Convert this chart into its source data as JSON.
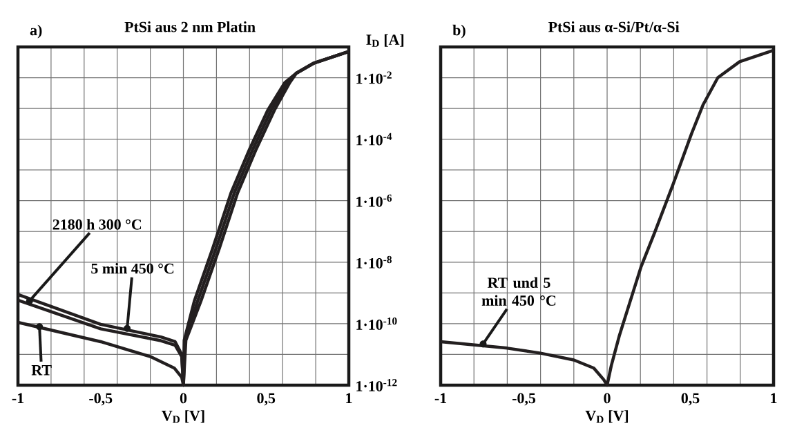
{
  "chart_data": [
    {
      "type": "line",
      "title": "PtSi aus 2 nm Platin",
      "xlabel": "V$_{D}$ [V]",
      "ylabel": "I$_{D}$ [A]",
      "log": "y",
      "grid": true,
      "line_style": "solid",
      "marker": "none",
      "xlim": [
        -1,
        1
      ],
      "ylim": [
        1e-12,
        0.1
      ],
      "xticks": [
        {
          "value": -1,
          "label": "-1"
        },
        {
          "value": -0.8,
          "label": null
        },
        {
          "value": -0.6,
          "label": null
        },
        {
          "value": -0.5,
          "label": "-0,5"
        },
        {
          "value": -0.4,
          "label": null
        },
        {
          "value": -0.2,
          "label": null
        },
        {
          "value": 0,
          "label": "0"
        },
        {
          "value": 0.2,
          "label": null
        },
        {
          "value": 0.4,
          "label": null
        },
        {
          "value": 0.5,
          "label": "0,5"
        },
        {
          "value": 0.6,
          "label": null
        },
        {
          "value": 0.8,
          "label": null
        },
        {
          "value": 1,
          "label": "1"
        }
      ],
      "yticks": [
        {
          "value": 1e-12,
          "label": "1·10$^{-12}$"
        },
        {
          "value": 1e-11,
          "label": null
        },
        {
          "value": 1e-10,
          "label": "1·10$^{-10}$"
        },
        {
          "value": 1e-09,
          "label": null
        },
        {
          "value": 1e-08,
          "label": "1·10$^{-8}$"
        },
        {
          "value": 1e-07,
          "label": null
        },
        {
          "value": 1e-06,
          "label": "1·10$^{-6}$"
        },
        {
          "value": 1e-05,
          "label": null
        },
        {
          "value": 0.0001,
          "label": "1·10$^{-4}$"
        },
        {
          "value": 0.001,
          "label": null
        },
        {
          "value": 0.01,
          "label": "1·10$^{-2}$"
        }
      ],
      "series": [
        {
          "color": "#231f20",
          "x": [
            -1,
            -0.5,
            -0.136,
            -0.05,
            -0.01,
            0,
            0.005,
            0.066,
            0.177,
            0.288,
            0.4,
            0.51,
            0.613,
            0.683,
            0.79,
            1
          ],
          "values": [
            8.9e-10,
            9.5e-11,
            3.7e-11,
            2.6e-11,
            1e-11,
            1e-12,
            2.9e-11,
            5.4e-10,
            2.8e-08,
            1.8e-06,
            4.7e-05,
            0.00087,
            0.0069,
            0.014,
            0.03,
            0.071
          ]
        },
        {
          "color": "#231f20",
          "x": [
            -1,
            -0.5,
            -0.136,
            -0.05,
            -0.01,
            0,
            0.01,
            0.086,
            0.197,
            0.308,
            0.42,
            0.53,
            0.628,
            0.683,
            0.79,
            1
          ],
          "values": [
            5.8e-10,
            6.8e-11,
            2.8e-11,
            2e-11,
            8.5e-12,
            1e-12,
            2.9e-11,
            5.4e-10,
            2.8e-08,
            1.8e-06,
            4.7e-05,
            0.00087,
            0.0069,
            0.014,
            0.03,
            0.071
          ]
        },
        {
          "color": "#231f20",
          "x": [
            -1,
            -0.5,
            -0.2,
            -0.055,
            -0.01,
            0,
            0.015,
            0.106,
            0.217,
            0.328,
            0.44,
            0.55,
            0.643,
            0.683,
            0.79,
            1
          ],
          "values": [
            1.1e-10,
            2.6e-11,
            8.5e-12,
            3.6e-12,
            1.8e-12,
            1e-12,
            2.9e-11,
            5.4e-10,
            2.8e-08,
            1.8e-06,
            4.7e-05,
            0.00087,
            0.0069,
            0.014,
            0.03,
            0.071
          ]
        }
      ],
      "annotations": [
        "a)",
        {
          "text": "2180 h 300 °C",
          "x": -0.93,
          "y": 5.5e-10
        },
        {
          "text": "5 min 450 °C",
          "x": -0.34,
          "y": 7e-11
        },
        {
          "text": "RT",
          "x": -0.87,
          "y": 8e-11
        }
      ]
    },
    {
      "type": "line",
      "title": "PtSi aus α-Si/Pt/α-Si",
      "xlabel": "V$_{D}$ [V]",
      "log": "y",
      "grid": true,
      "line_style": "solid",
      "marker": "none",
      "tick_labels": "x",
      "xlim": [
        -1,
        1
      ],
      "ylim": [
        1e-12,
        0.1
      ],
      "xticks": [
        {
          "value": -1,
          "label": "-1"
        },
        {
          "value": -0.8,
          "label": null
        },
        {
          "value": -0.6,
          "label": null
        },
        {
          "value": -0.5,
          "label": "-0,5"
        },
        {
          "value": -0.4,
          "label": null
        },
        {
          "value": -0.2,
          "label": null
        },
        {
          "value": 0,
          "label": "0"
        },
        {
          "value": 0.2,
          "label": null
        },
        {
          "value": 0.4,
          "label": null
        },
        {
          "value": 0.5,
          "label": "0,5"
        },
        {
          "value": 0.6,
          "label": null
        },
        {
          "value": 0.8,
          "label": null
        },
        {
          "value": 1,
          "label": "1"
        }
      ],
      "yticks": [
        1e-12,
        1e-11,
        1e-10,
        1e-09,
        1e-08,
        1e-07,
        1e-06,
        1e-05,
        0.0001,
        0.001,
        0.01
      ],
      "series": [
        {
          "color": "#231f20",
          "x": [
            -1,
            -0.6,
            -0.4,
            -0.2,
            -0.08,
            -0.02,
            0,
            0.025,
            0.073,
            0.204,
            0.286,
            0.397,
            0.507,
            0.576,
            0.665,
            0.796,
            1
          ],
          "values": [
            2.6e-11,
            1.6e-11,
            1.1e-11,
            6.6e-12,
            3.6e-12,
            1.5e-12,
            1e-12,
            4.3e-12,
            4e-11,
            7.1e-09,
            9.3e-08,
            3.5e-06,
            0.00015,
            0.0013,
            0.01,
            0.033,
            0.078
          ]
        }
      ],
      "annotations": [
        "b)",
        {
          "text": "RT und 5 min 450 °C",
          "x": -0.745,
          "y": 2.2e-11
        }
      ]
    }
  ]
}
